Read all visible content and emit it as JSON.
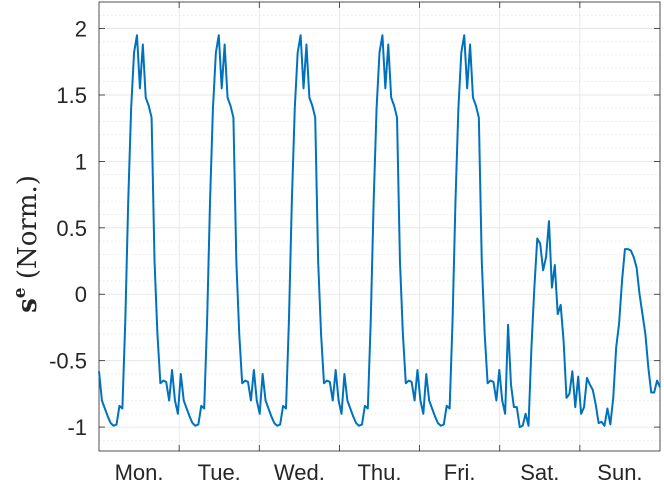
{
  "chart_data": {
    "type": "line",
    "ylabel_base": "s",
    "ylabel_sup": "e",
    "ylabel_rest": " (Norm.)",
    "xticklabels": [
      "Mon.",
      "Tue.",
      "Wed.",
      "Thu.",
      "Fri.",
      "Sat.",
      "Sun."
    ],
    "yticks": [
      -1,
      -0.5,
      0,
      0.5,
      1,
      1.5,
      2
    ],
    "yticklabels": [
      "-1",
      "-0.5",
      "0",
      "0.5",
      "1",
      "1.5",
      "2"
    ],
    "ylim": [
      -1.18,
      2.2
    ],
    "xlim": [
      0,
      168
    ],
    "grid": true,
    "minor_grid": true,
    "line_color": "#0072BD",
    "series": [
      {
        "values": [
          -0.58,
          -0.8,
          -0.86,
          -0.92,
          -0.97,
          -0.99,
          -0.98,
          -0.84,
          -0.86,
          -0.2,
          0.7,
          1.4,
          1.82,
          1.95,
          1.55,
          1.88,
          1.48,
          1.42,
          1.33,
          0.25,
          -0.3,
          -0.67,
          -0.65,
          -0.66,
          -0.8,
          -0.57,
          -0.8,
          -0.9,
          -0.6,
          -0.8,
          -0.86,
          -0.92,
          -0.97,
          -0.99,
          -0.98,
          -0.84,
          -0.86,
          -0.2,
          0.7,
          1.4,
          1.82,
          1.95,
          1.55,
          1.88,
          1.48,
          1.42,
          1.33,
          0.25,
          -0.3,
          -0.67,
          -0.65,
          -0.66,
          -0.8,
          -0.57,
          -0.8,
          -0.9,
          -0.6,
          -0.8,
          -0.86,
          -0.92,
          -0.97,
          -0.99,
          -0.98,
          -0.84,
          -0.86,
          -0.2,
          0.7,
          1.4,
          1.82,
          1.95,
          1.55,
          1.88,
          1.48,
          1.42,
          1.33,
          0.25,
          -0.3,
          -0.67,
          -0.65,
          -0.66,
          -0.8,
          -0.57,
          -0.8,
          -0.9,
          -0.6,
          -0.8,
          -0.86,
          -0.92,
          -0.97,
          -0.99,
          -0.98,
          -0.84,
          -0.86,
          -0.2,
          0.7,
          1.4,
          1.82,
          1.95,
          1.55,
          1.88,
          1.48,
          1.42,
          1.33,
          0.25,
          -0.3,
          -0.67,
          -0.65,
          -0.66,
          -0.8,
          -0.57,
          -0.8,
          -0.9,
          -0.6,
          -0.8,
          -0.86,
          -0.92,
          -0.97,
          -0.99,
          -0.98,
          -0.84,
          -0.86,
          -0.2,
          0.7,
          1.4,
          1.82,
          1.95,
          1.55,
          1.88,
          1.48,
          1.42,
          1.33,
          0.25,
          -0.3,
          -0.67,
          -0.65,
          -0.66,
          -0.8,
          -0.57,
          -0.8,
          -0.9,
          -0.23,
          -0.68,
          -0.85,
          -0.85,
          -1.0,
          -0.99,
          -0.9,
          -0.99,
          -0.4,
          0.05,
          0.42,
          0.38,
          0.18,
          0.28,
          0.55,
          0.05,
          0.22,
          -0.15,
          -0.08,
          -0.35,
          -0.78,
          -0.75,
          -0.58,
          -0.85,
          -0.62,
          -0.9,
          -0.85,
          -0.63,
          -0.68,
          -0.72,
          -0.83,
          -0.97,
          -0.96,
          -0.99,
          -0.86,
          -0.98,
          -0.78,
          -0.4,
          -0.22,
          0.1,
          0.34,
          0.34,
          0.33,
          0.28,
          0.2,
          0.0,
          -0.15,
          -0.3,
          -0.55,
          -0.74,
          -0.74,
          -0.65,
          -0.7
        ]
      }
    ]
  }
}
